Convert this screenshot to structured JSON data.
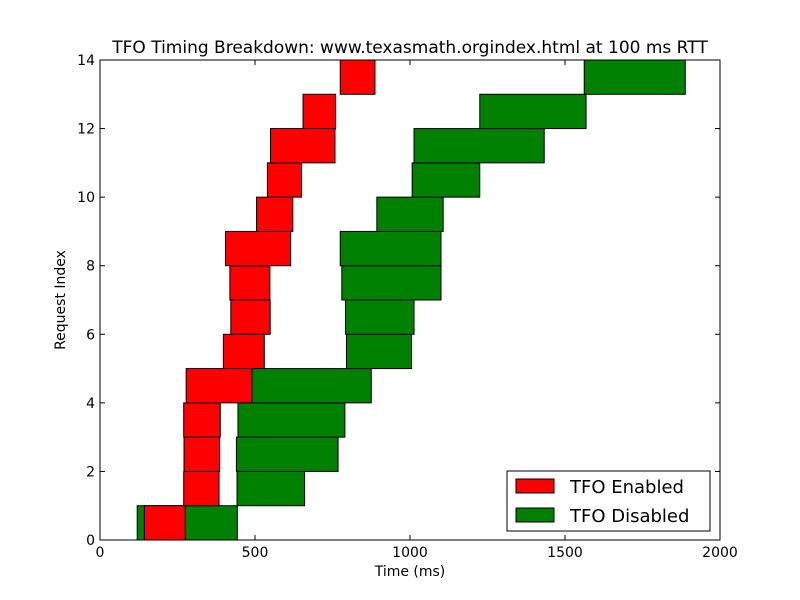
{
  "chart_data": {
    "type": "bar",
    "orientation": "horizontal-range",
    "title": "TFO Timing Breakdown: www.texasmath.orgindex.html at 100 ms RTT",
    "xlabel": "Time (ms)",
    "ylabel": "Request Index",
    "xlim": [
      0,
      2000
    ],
    "ylim": [
      0,
      14
    ],
    "xticks": [
      "0",
      "500",
      "1000",
      "1500",
      "2000"
    ],
    "yticks": [
      "0",
      "2",
      "4",
      "6",
      "8",
      "10",
      "12",
      "14"
    ],
    "legend_position": "lower-right",
    "grid": false,
    "series": [
      {
        "name": "TFO Enabled",
        "color": "#ff0000",
        "bars": [
          {
            "index": 0,
            "start": 143,
            "end": 275
          },
          {
            "index": 1,
            "start": 270,
            "end": 384
          },
          {
            "index": 2,
            "start": 271,
            "end": 386
          },
          {
            "index": 3,
            "start": 270,
            "end": 388
          },
          {
            "index": 4,
            "start": 278,
            "end": 490
          },
          {
            "index": 5,
            "start": 398,
            "end": 530
          },
          {
            "index": 6,
            "start": 422,
            "end": 549
          },
          {
            "index": 7,
            "start": 419,
            "end": 548
          },
          {
            "index": 8,
            "start": 405,
            "end": 615
          },
          {
            "index": 9,
            "start": 505,
            "end": 622
          },
          {
            "index": 10,
            "start": 540,
            "end": 650
          },
          {
            "index": 11,
            "start": 550,
            "end": 758
          },
          {
            "index": 12,
            "start": 655,
            "end": 760
          },
          {
            "index": 13,
            "start": 775,
            "end": 887
          }
        ]
      },
      {
        "name": "TFO Disabled",
        "color": "#008000",
        "bars": [
          {
            "index": 0,
            "start": 120,
            "end": 443
          },
          {
            "index": 1,
            "start": 442,
            "end": 660
          },
          {
            "index": 2,
            "start": 440,
            "end": 768
          },
          {
            "index": 3,
            "start": 445,
            "end": 790
          },
          {
            "index": 4,
            "start": 490,
            "end": 875
          },
          {
            "index": 5,
            "start": 795,
            "end": 1005
          },
          {
            "index": 6,
            "start": 792,
            "end": 1013
          },
          {
            "index": 7,
            "start": 780,
            "end": 1100
          },
          {
            "index": 8,
            "start": 775,
            "end": 1100
          },
          {
            "index": 9,
            "start": 893,
            "end": 1107
          },
          {
            "index": 10,
            "start": 1007,
            "end": 1225
          },
          {
            "index": 11,
            "start": 1013,
            "end": 1433
          },
          {
            "index": 12,
            "start": 1225,
            "end": 1568
          },
          {
            "index": 13,
            "start": 1562,
            "end": 1888
          }
        ]
      }
    ]
  }
}
